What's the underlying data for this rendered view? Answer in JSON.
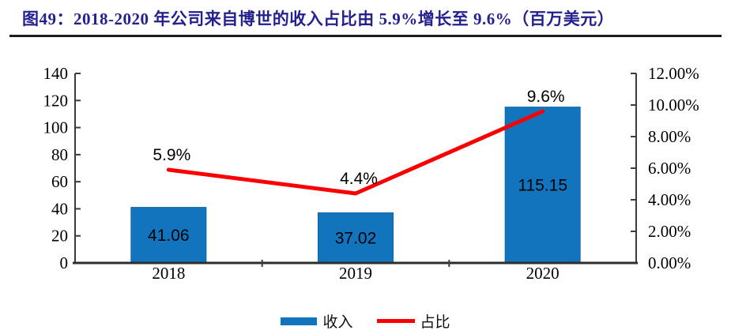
{
  "header": {
    "title": "图49：2018-2020 年公司来自博世的收入占比由 5.9%增长至 9.6%（百万美元）"
  },
  "colors": {
    "title": "#24218F",
    "bar_fill": "#1374BE",
    "bar_stroke": "#0E65A5",
    "line": "#FA0000",
    "axis": "#3B3B3B",
    "label_text": "#000000"
  },
  "chart_data": {
    "type": "bar+line",
    "title": "图49：2018-2020 年公司来自博世的收入占比由 5.9%增长至 9.6%（百万美元）",
    "categories": [
      "2018",
      "2019",
      "2020"
    ],
    "series": [
      {
        "name": "收入",
        "type": "bar",
        "axis": "left",
        "color": "#1374BE",
        "values": [
          41.06,
          37.02,
          115.15
        ],
        "data_labels": [
          "41.06",
          "37.02",
          "115.15"
        ]
      },
      {
        "name": "占比",
        "type": "line",
        "axis": "right",
        "color": "#FA0000",
        "values": [
          5.9,
          4.4,
          9.6
        ],
        "data_labels": [
          "5.9%",
          "4.4%",
          "9.6%"
        ]
      }
    ],
    "left_axis": {
      "min": 0,
      "max": 140,
      "step": 20,
      "tick_labels": [
        "0",
        "20",
        "40",
        "60",
        "80",
        "100",
        "120",
        "140"
      ]
    },
    "right_axis": {
      "min": 0,
      "max": 12,
      "step": 2,
      "tick_labels": [
        "0.00%",
        "2.00%",
        "4.00%",
        "6.00%",
        "8.00%",
        "10.00%",
        "12.00%"
      ]
    },
    "grid": false,
    "legend_position": "bottom"
  }
}
